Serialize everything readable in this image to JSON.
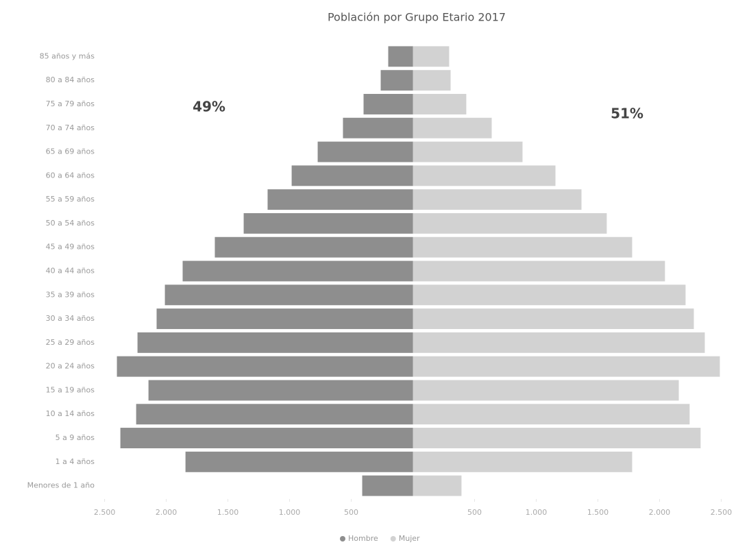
{
  "chart_data": {
    "type": "bar",
    "orientation": "horizontal",
    "stacked": true,
    "title": "Población por Grupo Etario 2017",
    "categories": [
      "85 años y más",
      "80 a 84 años",
      "75 a 79 años",
      "70 a 74 años",
      "65 a 69 años",
      "60 a 64 años",
      "55 a 59 años",
      "50 a 54 años",
      "45 a 49 años",
      "40 a 44 años",
      "35 a 39 años",
      "30 a 34 años",
      "25 a 29 años",
      "20 a 24 años",
      "15 a 19 años",
      "10 a 14 años",
      "5 a 9 años",
      "1 a 4 años",
      "Menores de 1 año"
    ],
    "series": [
      {
        "name": "Hombre",
        "color": "#8e8e8e",
        "values": [
          -200,
          -261,
          -400,
          -567,
          -772,
          -983,
          -1178,
          -1372,
          -1606,
          -1867,
          -2011,
          -2078,
          -2233,
          -2400,
          -2144,
          -2244,
          -2372,
          -1844,
          -411
        ]
      },
      {
        "name": "Mujer",
        "color": "#d2d2d2",
        "values": [
          294,
          306,
          433,
          639,
          889,
          1156,
          1367,
          1572,
          1778,
          2044,
          2211,
          2278,
          2367,
          2489,
          2156,
          2244,
          2333,
          1778,
          394
        ]
      }
    ],
    "xlim": [
      -2570,
      2570
    ],
    "xticks": [
      {
        "value": -2500,
        "label": "2.500"
      },
      {
        "value": -2000,
        "label": "2.000"
      },
      {
        "value": -1500,
        "label": "1.500"
      },
      {
        "value": -1000,
        "label": "1.000"
      },
      {
        "value": -500,
        "label": "500"
      },
      500,
      {
        "value": 1000,
        "label": "1.000"
      },
      {
        "value": 1500,
        "label": "1.500"
      },
      {
        "value": 2000,
        "label": "2.000"
      },
      {
        "value": 2500,
        "label": "2.500"
      }
    ],
    "annotations": [
      "49%",
      "51%"
    ],
    "legend": "bottom"
  }
}
